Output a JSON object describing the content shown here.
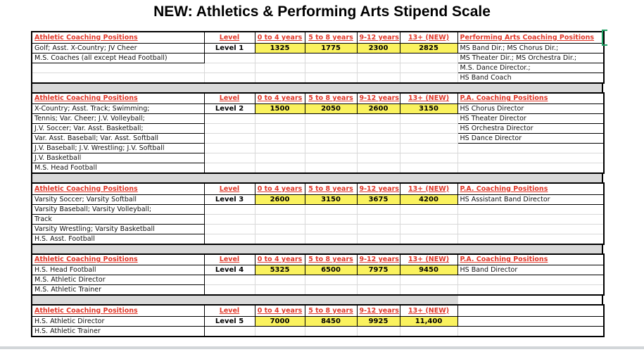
{
  "title": "NEW:  Athletics & Performing Arts Stipend Scale",
  "colors": {
    "header_red": "#e0382a",
    "highlight_yellow": "#faf25e",
    "divider_gray": "#d9d9d9",
    "selection_green": "#21a366"
  },
  "column_headers": {
    "athletic": "Athletic Coaching Positions",
    "level": "Level"
  },
  "year_headers": [
    "0 to 4 years",
    "5 to 8 years",
    "9-12 years",
    "13+ (NEW)"
  ],
  "sections": [
    {
      "pa_header": "Performing Arts Coaching Positions",
      "rows": [
        {
          "athletic": "Golf; Asst. X-Country; JV Cheer",
          "level": "Level 1",
          "values": [
            "1325",
            "1775",
            "2300",
            "2825"
          ],
          "pa": "MS Band Dir.;  MS Chorus Dir.;"
        },
        {
          "athletic": "M.S. Coaches (all except Head Football)",
          "pa": "MS Theater Dir.;  MS Orchestra Dir.;"
        },
        {
          "pa": "M.S. Dance Director.;"
        },
        {
          "pa": "HS Band Coach"
        }
      ]
    },
    {
      "pa_header": "P.A. Coaching Positions",
      "rows": [
        {
          "athletic": "X-Country; Asst. Track; Swimming;",
          "level": "Level 2",
          "values": [
            "1500",
            "2050",
            "2600",
            "3150"
          ],
          "pa": "HS Chorus Director"
        },
        {
          "athletic": "Tennis; Var. Cheer; J.V. Volleyball;",
          "pa": "HS Theater Director"
        },
        {
          "athletic": "J.V. Soccer; Var. Asst. Basketball;",
          "pa": "HS Orchestra Director"
        },
        {
          "athletic": "Var. Asst. Baseball; Var. Asst. Softball",
          "pa": "HS Dance Director"
        },
        {
          "athletic": "J.V. Baseball; J.V. Wrestling; J.V. Softball"
        },
        {
          "athletic": "J.V. Basketball"
        },
        {
          "athletic": "M.S. Head Football"
        }
      ]
    },
    {
      "pa_header": "P.A. Coaching Positions",
      "rows": [
        {
          "athletic": "Varsity Soccer; Varsity Softball",
          "level": "Level 3",
          "values": [
            "2600",
            "3150",
            "3675",
            "4200"
          ],
          "pa": "HS Assistant Band Director"
        },
        {
          "athletic": "Varsity Baseball; Varsity Volleyball;"
        },
        {
          "athletic": "Track"
        },
        {
          "athletic": "Varsity Wrestling; Varsity Basketball"
        },
        {
          "athletic": "H.S. Asst.  Football"
        }
      ]
    },
    {
      "pa_header": "P.A. Coaching Positions",
      "rows": [
        {
          "athletic": "H.S. Head Football",
          "level": "Level 4",
          "values": [
            "5325",
            "6500",
            "7975",
            "9450"
          ],
          "pa": "HS Band Director"
        },
        {
          "athletic": "M.S. Athletic Director"
        },
        {
          "athletic": "M.S. Athletic Trainer"
        }
      ]
    },
    {
      "pa_header": "",
      "rows": [
        {
          "athletic": "H.S. Athletic Director",
          "level": "Level 5",
          "values": [
            "7000",
            "8450",
            "9925",
            "11,400"
          ]
        },
        {
          "athletic": "H.S. Athletic Trainer"
        }
      ]
    }
  ]
}
